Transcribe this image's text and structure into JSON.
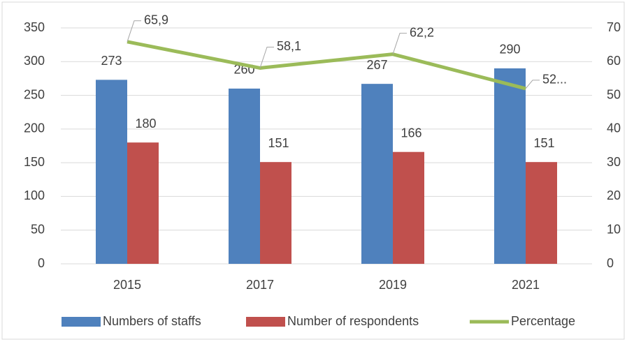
{
  "chart_data": {
    "type": "bar",
    "categories": [
      "2015",
      "2017",
      "2019",
      "2021"
    ],
    "series": [
      {
        "name": "Numbers of staffs",
        "color": "#4f81bd",
        "type": "bar",
        "values": [
          273,
          260,
          267,
          290
        ]
      },
      {
        "name": "Number of respondents",
        "color": "#c0504d",
        "type": "bar",
        "values": [
          180,
          151,
          166,
          151
        ]
      },
      {
        "name": "Percentage",
        "color": "#9bbb59",
        "type": "line",
        "axis": "y2",
        "values": [
          65.9,
          58.1,
          62.2,
          52.0
        ],
        "value_labels": [
          "65,9",
          "58,1",
          "62,2",
          "52..."
        ]
      }
    ],
    "ylim": [
      0,
      350
    ],
    "yticks": [
      0,
      50,
      100,
      150,
      200,
      250,
      300,
      350
    ],
    "y2lim": [
      0,
      70
    ],
    "y2ticks": [
      0,
      10,
      20,
      30,
      40,
      50,
      60,
      70
    ],
    "grid": true,
    "legend": "bottom"
  }
}
